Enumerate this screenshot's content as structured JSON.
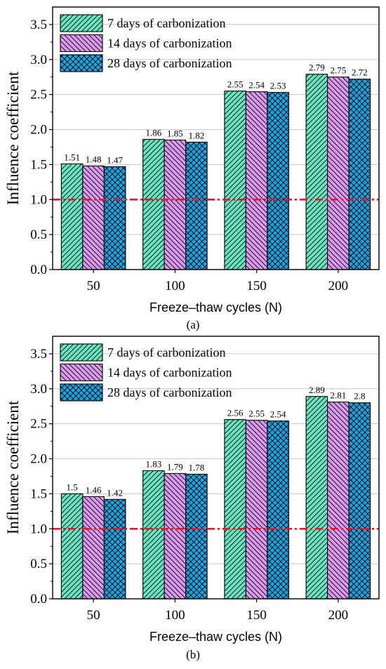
{
  "panels": [
    {
      "label": "(a)",
      "chart_data": {
        "type": "bar",
        "categories": [
          "50",
          "100",
          "150",
          "200"
        ],
        "series": [
          {
            "name": "7 days of carbonization",
            "values": [
              1.51,
              1.86,
              2.55,
              2.79
            ]
          },
          {
            "name": "14 days of carbonization",
            "values": [
              1.48,
              1.85,
              2.54,
              2.75
            ]
          },
          {
            "name": "28 days of carbonization",
            "values": [
              1.47,
              1.82,
              2.53,
              2.72
            ]
          }
        ],
        "data_labels": [
          [
            "1.51",
            "1.86",
            "2.55",
            "2.79"
          ],
          [
            "1.48",
            "1.85",
            "2.54",
            "2.75"
          ],
          [
            "1.47",
            "1.82",
            "2.53",
            "2.72"
          ]
        ],
        "xlabel": "Freeze–thaw cycles (N)",
        "ylabel": "Influence coefficient",
        "ylim": [
          0,
          3.75
        ],
        "yticks": [
          "0.0",
          "0.5",
          "1.0",
          "1.5",
          "2.0",
          "2.5",
          "3.0",
          "3.5"
        ],
        "reference_line": {
          "y": 1.0,
          "style": "dash-dot",
          "color": "#e8192c"
        },
        "grid": true,
        "legend_position": "top-left"
      }
    },
    {
      "label": "(b)",
      "chart_data": {
        "type": "bar",
        "categories": [
          "50",
          "100",
          "150",
          "200"
        ],
        "series": [
          {
            "name": "7 days of carbonization",
            "values": [
              1.5,
              1.83,
              2.56,
              2.89
            ]
          },
          {
            "name": "14 days of carbonization",
            "values": [
              1.46,
              1.79,
              2.55,
              2.81
            ]
          },
          {
            "name": "28 days of carbonization",
            "values": [
              1.42,
              1.78,
              2.54,
              2.8
            ]
          }
        ],
        "data_labels": [
          [
            "1.5",
            "1.83",
            "2.56",
            "2.89"
          ],
          [
            "1.46",
            "1.79",
            "2.55",
            "2.81"
          ],
          [
            "1.42",
            "1.78",
            "2.54",
            "2.8"
          ]
        ],
        "xlabel": "Freeze–thaw cycles (N)",
        "ylabel": "Influence coefficient",
        "ylim": [
          0,
          3.75
        ],
        "yticks": [
          "0.0",
          "0.5",
          "1.0",
          "1.5",
          "2.0",
          "2.5",
          "3.0",
          "3.5"
        ],
        "reference_line": {
          "y": 1.0,
          "style": "dash-dot",
          "color": "#e8192c"
        },
        "grid": true,
        "legend_position": "top-left"
      }
    }
  ],
  "colors": {
    "series": [
      "#66e6c2",
      "#dd99ee",
      "#19a3e0"
    ],
    "reference": "#e8192c"
  }
}
